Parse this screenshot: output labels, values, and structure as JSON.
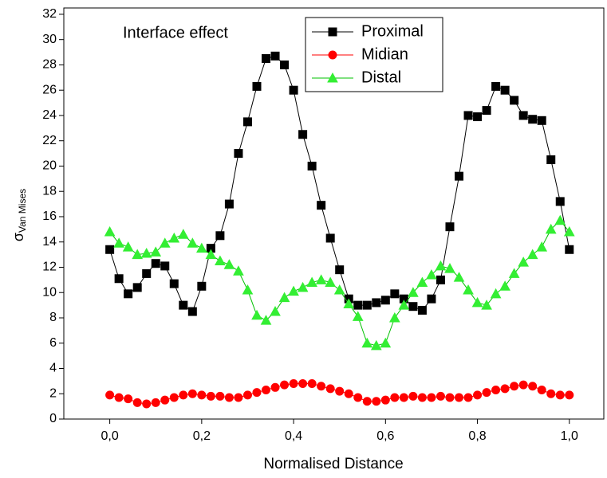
{
  "chart_data": {
    "type": "line",
    "annotation": "Interface effect",
    "xlabel": "Normalised Distance",
    "ylabel": "σ",
    "ylabel_subscript": "Van Mises",
    "x": [
      0,
      0.02,
      0.04,
      0.06,
      0.08,
      0.1,
      0.12,
      0.14,
      0.16,
      0.18,
      0.2,
      0.22,
      0.24,
      0.26,
      0.28,
      0.3,
      0.32,
      0.34,
      0.36,
      0.38,
      0.4,
      0.42,
      0.44,
      0.46,
      0.48,
      0.5,
      0.52,
      0.54,
      0.56,
      0.58,
      0.6,
      0.62,
      0.64,
      0.66,
      0.68,
      0.7,
      0.72,
      0.74,
      0.76,
      0.78,
      0.8,
      0.82,
      0.84,
      0.86,
      0.88,
      0.9,
      0.92,
      0.94,
      0.96,
      0.98,
      1
    ],
    "series": [
      {
        "name": "Proximal",
        "color": "#000000",
        "marker_fill": "#000000",
        "marker": "square",
        "values": [
          13.4,
          11.1,
          9.9,
          10.4,
          11.5,
          12.3,
          12.1,
          10.7,
          9.0,
          8.5,
          10.5,
          13.5,
          14.5,
          17.0,
          21.0,
          23.5,
          26.3,
          28.5,
          28.7,
          28.0,
          26.0,
          22.5,
          20.0,
          16.9,
          14.3,
          11.8,
          9.5,
          9.0,
          9.0,
          9.2,
          9.4,
          9.9,
          9.5,
          8.9,
          8.6,
          9.5,
          11.0,
          15.2,
          19.2,
          24.0,
          23.9,
          24.4,
          26.3,
          26.0,
          25.2,
          24.0,
          23.7,
          23.6,
          20.5,
          17.2,
          13.4
        ]
      },
      {
        "name": "Midian",
        "color": "#ff0000",
        "marker_fill": "#ff0000",
        "marker": "circle",
        "values": [
          1.9,
          1.7,
          1.6,
          1.3,
          1.2,
          1.3,
          1.5,
          1.7,
          1.9,
          2.0,
          1.9,
          1.8,
          1.8,
          1.7,
          1.7,
          1.9,
          2.1,
          2.3,
          2.5,
          2.7,
          2.8,
          2.8,
          2.8,
          2.6,
          2.4,
          2.2,
          2.0,
          1.7,
          1.4,
          1.4,
          1.5,
          1.7,
          1.7,
          1.8,
          1.7,
          1.7,
          1.8,
          1.7,
          1.7,
          1.7,
          1.9,
          2.1,
          2.3,
          2.4,
          2.6,
          2.7,
          2.6,
          2.3,
          2.0,
          1.9,
          1.9
        ]
      },
      {
        "name": "Distal",
        "color": "#00c000",
        "marker_fill": "#33ee33",
        "marker": "triangle",
        "values": [
          14.8,
          13.9,
          13.6,
          13.0,
          13.1,
          13.2,
          13.9,
          14.3,
          14.6,
          13.9,
          13.5,
          13.0,
          12.5,
          12.2,
          11.7,
          10.2,
          8.2,
          7.8,
          8.5,
          9.6,
          10.1,
          10.4,
          10.8,
          11.0,
          10.8,
          10.2,
          9.1,
          8.1,
          6.0,
          5.8,
          6.0,
          8.0,
          9.0,
          10.0,
          10.8,
          11.4,
          12.1,
          11.9,
          11.2,
          10.2,
          9.2,
          9.0,
          9.9,
          10.5,
          11.5,
          12.4,
          13.0,
          13.6,
          15.0,
          15.7,
          14.8
        ]
      }
    ],
    "xlim": [
      -0.1,
      1.075
    ],
    "xticks": [
      {
        "value": 0,
        "label": "0,0"
      },
      {
        "value": 0.2,
        "label": "0,2"
      },
      {
        "value": 0.4,
        "label": "0,4"
      },
      {
        "value": 0.6,
        "label": "0,6"
      },
      {
        "value": 0.8,
        "label": "0,8"
      },
      {
        "value": 1,
        "label": "1,0"
      }
    ],
    "ylim": [
      0,
      32.5
    ],
    "yticks": [
      0,
      2,
      4,
      6,
      8,
      10,
      12,
      14,
      16,
      18,
      20,
      22,
      24,
      26,
      28,
      30,
      32
    ],
    "legend": "top"
  }
}
